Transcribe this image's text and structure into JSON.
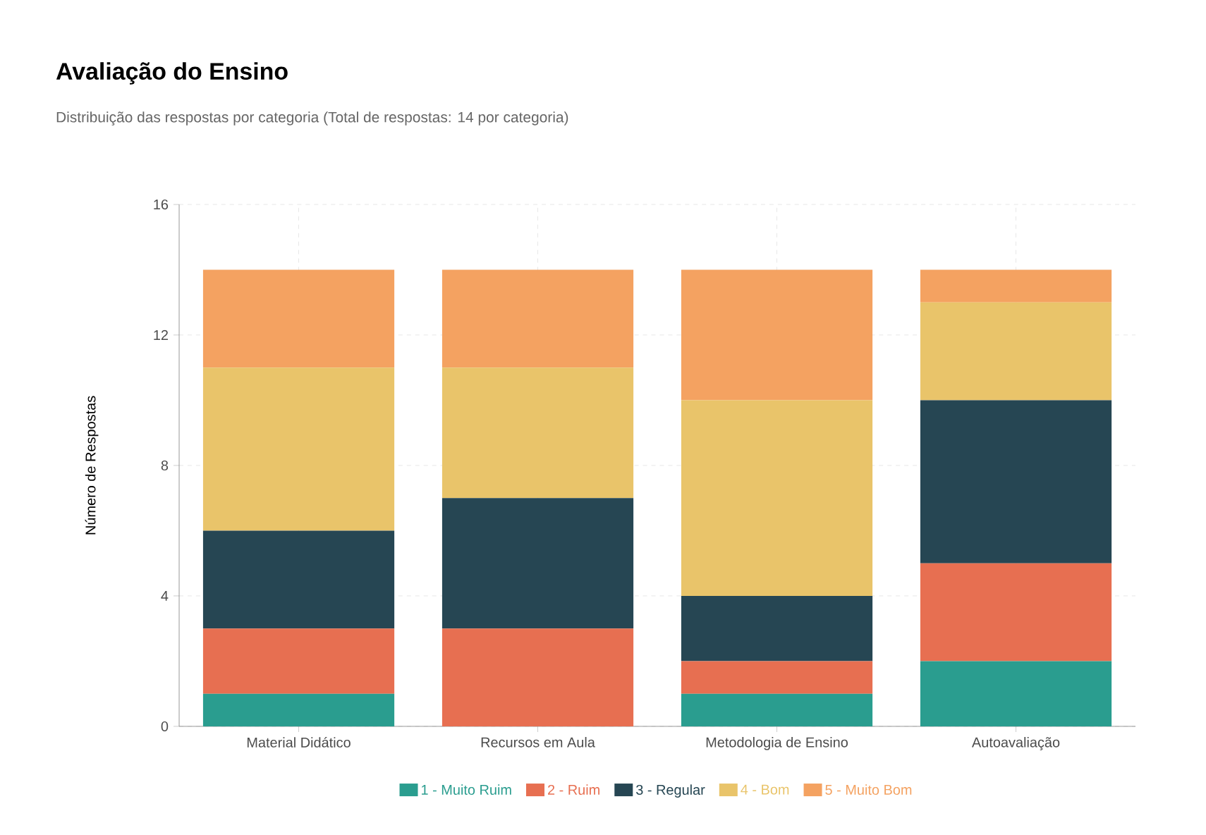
{
  "chart_data": {
    "type": "bar",
    "title": "Avaliação do Ensino",
    "subtitle": "Distribuição das respostas por categoria (Total de respostas: 14 por categoria)",
    "ylabel": "Número de Respostas",
    "categories": [
      "Material Didático",
      "Recursos em Aula",
      "Metodologia de Ensino",
      "Autoavaliação"
    ],
    "series": [
      {
        "name": "1 - Muito Ruim",
        "color": "#2a9d8f",
        "values": [
          1,
          0,
          1,
          2
        ]
      },
      {
        "name": "2 - Ruim",
        "color": "#e76f51",
        "values": [
          2,
          3,
          1,
          3
        ]
      },
      {
        "name": "3 - Regular",
        "color": "#264653",
        "values": [
          3,
          4,
          2,
          5
        ]
      },
      {
        "name": "4 - Bom",
        "color": "#e9c46a",
        "values": [
          5,
          4,
          6,
          3
        ]
      },
      {
        "name": "5 - Muito Bom",
        "color": "#f4a261",
        "values": [
          3,
          3,
          4,
          1
        ]
      }
    ],
    "stacked": true,
    "ylim": [
      0,
      16
    ],
    "yticks": [
      0,
      4,
      8,
      12,
      16
    ],
    "grid": true,
    "legend": "bottom"
  }
}
